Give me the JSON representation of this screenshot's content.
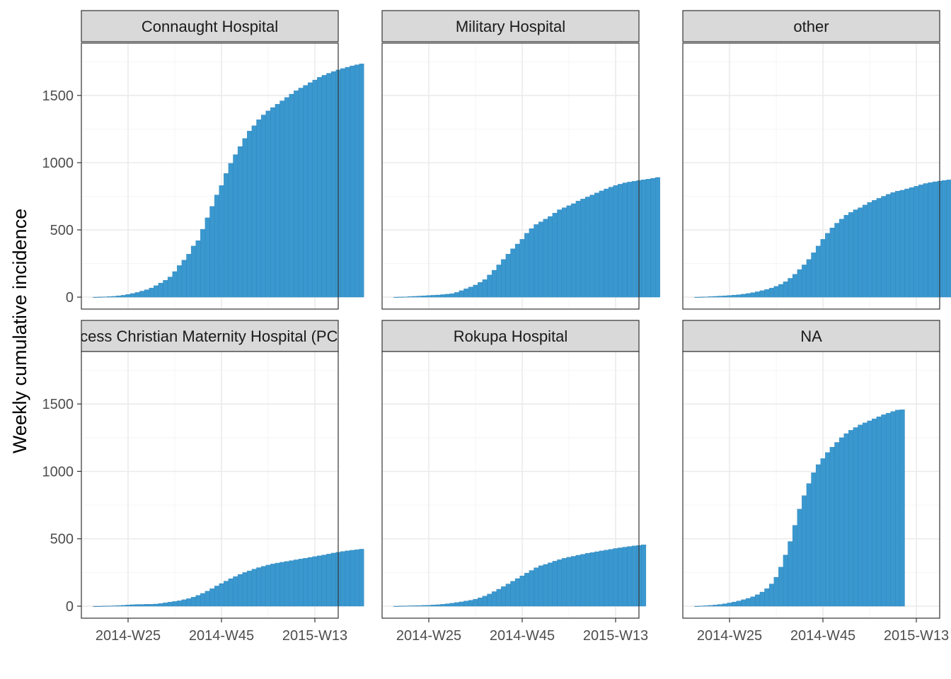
{
  "colors": {
    "bar": "#3a98cf",
    "bar_edge": "#2a7fb4",
    "strip_fill": "#d9d9d9",
    "panel_border": "#333333",
    "grid_major": "#ebebeb",
    "grid_minor": "#f5f5f5"
  },
  "chart_data": {
    "type": "bar",
    "subtype": "faceted cumulative weekly incidence",
    "ylabel": "Weekly cumulative incidence",
    "xlabel": "",
    "ylim": [
      0,
      1800
    ],
    "y_ticks": [
      0,
      500,
      1000,
      1500
    ],
    "y_tick_labels": [
      "0",
      "500",
      "1000",
      "1500"
    ],
    "x_ticks": [
      "2014-W25",
      "2014-W45",
      "2015-W13"
    ],
    "x_range": [
      "2014-W15",
      "2015-W18"
    ],
    "grid": true,
    "legend": "none",
    "facets": [
      {
        "label": "Connaught Hospital",
        "weeks": [
          "2014-W18",
          "2015-W17"
        ],
        "values": [
          0,
          1,
          2,
          4,
          6,
          10,
          14,
          20,
          27,
          35,
          45,
          55,
          68,
          85,
          105,
          125,
          150,
          190,
          235,
          275,
          320,
          380,
          420,
          505,
          590,
          675,
          760,
          830,
          920,
          995,
          1060,
          1120,
          1180,
          1235,
          1275,
          1320,
          1355,
          1385,
          1410,
          1435,
          1460,
          1485,
          1510,
          1535,
          1555,
          1575,
          1595,
          1615,
          1635,
          1650,
          1665,
          1678,
          1690,
          1700,
          1710,
          1720,
          1728,
          1735
        ]
      },
      {
        "label": "Military Hospital",
        "weeks": [
          "2014-W18",
          "2015-W17"
        ],
        "values": [
          0,
          1,
          2,
          4,
          6,
          8,
          10,
          12,
          14,
          16,
          19,
          22,
          26,
          35,
          48,
          62,
          75,
          90,
          110,
          130,
          165,
          200,
          240,
          280,
          320,
          360,
          395,
          430,
          475,
          510,
          540,
          560,
          580,
          600,
          625,
          650,
          665,
          680,
          695,
          715,
          730,
          745,
          760,
          775,
          790,
          805,
          818,
          830,
          840,
          850,
          856,
          862,
          868,
          873,
          878,
          884,
          890
        ]
      },
      {
        "label": "other",
        "weeks": [
          "2014-W18",
          "2015-W17"
        ],
        "values": [
          0,
          1,
          2,
          4,
          6,
          8,
          10,
          12,
          15,
          18,
          22,
          27,
          33,
          40,
          48,
          57,
          67,
          80,
          95,
          115,
          140,
          170,
          205,
          240,
          280,
          330,
          380,
          430,
          475,
          515,
          550,
          580,
          610,
          630,
          650,
          665,
          685,
          705,
          720,
          735,
          750,
          765,
          778,
          788,
          795,
          805,
          815,
          825,
          835,
          845,
          852,
          858,
          863,
          868,
          872,
          876,
          880
        ]
      },
      {
        "label": "Princess Christian Maternity Hospital (PCMH)",
        "weeks": [
          "2014-W18",
          "2015-W17"
        ],
        "values": [
          0,
          0,
          1,
          2,
          3,
          5,
          7,
          9,
          11,
          13,
          13,
          14,
          14,
          16,
          20,
          25,
          30,
          35,
          40,
          48,
          56,
          67,
          80,
          95,
          112,
          130,
          150,
          168,
          186,
          204,
          220,
          236,
          250,
          262,
          275,
          286,
          296,
          305,
          313,
          320,
          326,
          332,
          338,
          344,
          350,
          356,
          362,
          368,
          374,
          380,
          387,
          394,
          400,
          406,
          411,
          415,
          419,
          423
        ]
      },
      {
        "label": "Rokupa Hospital",
        "weeks": [
          "2014-W18",
          "2015-W17"
        ],
        "values": [
          0,
          1,
          2,
          3,
          4,
          5,
          6,
          7,
          9,
          11,
          14,
          18,
          22,
          27,
          32,
          38,
          44,
          52,
          62,
          75,
          90,
          108,
          126,
          145,
          165,
          185,
          205,
          225,
          245,
          265,
          285,
          300,
          310,
          322,
          334,
          345,
          355,
          363,
          370,
          378,
          385,
          392,
          398,
          404,
          410,
          416,
          422,
          428,
          433,
          438,
          443,
          447,
          451,
          455
        ]
      },
      {
        "label": "NA",
        "weeks": [
          "2014-W18",
          "2015-W17"
        ],
        "values": [
          0,
          2,
          4,
          6,
          9,
          13,
          18,
          24,
          31,
          39,
          48,
          58,
          70,
          85,
          105,
          130,
          165,
          215,
          290,
          380,
          480,
          600,
          720,
          820,
          910,
          990,
          1050,
          1095,
          1140,
          1180,
          1215,
          1250,
          1280,
          1305,
          1325,
          1345,
          1360,
          1375,
          1390,
          1405,
          1420,
          1432,
          1444,
          1455,
          1458
        ]
      }
    ]
  }
}
